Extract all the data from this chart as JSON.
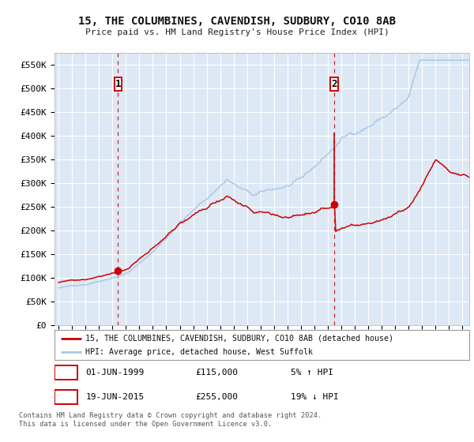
{
  "title": "15, THE COLUMBINES, CAVENDISH, SUDBURY, CO10 8AB",
  "subtitle": "Price paid vs. HM Land Registry's House Price Index (HPI)",
  "bg_color": "#dde8f5",
  "grid_color": "#ffffff",
  "fig_color": "#ffffff",
  "hpi_color": "#a8c8e8",
  "price_color": "#cc0000",
  "ylim": [
    0,
    575000
  ],
  "yticks": [
    0,
    50000,
    100000,
    150000,
    200000,
    250000,
    300000,
    350000,
    400000,
    450000,
    500000,
    550000
  ],
  "ytick_labels": [
    "£0",
    "£50K",
    "£100K",
    "£150K",
    "£200K",
    "£250K",
    "£300K",
    "£350K",
    "£400K",
    "£450K",
    "£500K",
    "£550K"
  ],
  "year_start": 1995,
  "year_end": 2025,
  "sale1_year": 1999.42,
  "sale1_price": 115000,
  "sale2_year": 2015.47,
  "sale2_price": 255000,
  "legend_property": "15, THE COLUMBINES, CAVENDISH, SUDBURY, CO10 8AB (detached house)",
  "legend_hpi": "HPI: Average price, detached house, West Suffolk",
  "sale1_label": "1",
  "sale2_label": "2",
  "sale1_date": "01-JUN-1999",
  "sale1_amount": "£115,000",
  "sale1_pct": "5% ↑ HPI",
  "sale2_date": "19-JUN-2015",
  "sale2_amount": "£255,000",
  "sale2_pct": "19% ↓ HPI",
  "footnote1": "Contains HM Land Registry data © Crown copyright and database right 2024.",
  "footnote2": "This data is licensed under the Open Government Licence v3.0."
}
